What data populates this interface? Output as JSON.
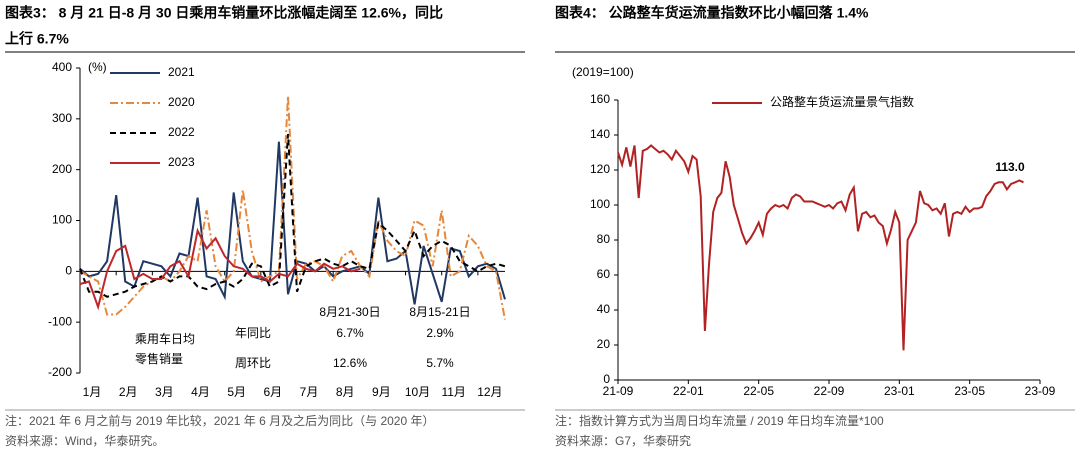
{
  "chart_data": [
    {
      "type": "line",
      "title": [
        "图表3： 8 月 21 日-8 月 30 日乘用车销量环比涨幅走阔至 12.6%，同比",
        "上行 6.7%"
      ],
      "y_unit": "(%)",
      "categories": [
        "1月",
        null,
        null,
        null,
        "2月",
        null,
        null,
        null,
        "3月",
        null,
        null,
        null,
        "4月",
        null,
        null,
        null,
        "5月",
        null,
        null,
        null,
        "6月",
        null,
        null,
        null,
        "7月",
        null,
        null,
        null,
        "8月",
        null,
        null,
        null,
        "9月",
        null,
        null,
        null,
        "10月",
        null,
        null,
        null,
        "11月",
        null,
        null,
        null,
        "12月",
        null,
        null,
        null
      ],
      "ylim": [
        -200,
        400
      ],
      "yticks": [
        -200,
        -100,
        0,
        100,
        200,
        300,
        400
      ],
      "legend": "top-left",
      "series": [
        {
          "name": "2021",
          "color": "#203864",
          "dash": "solid",
          "values": [
            5,
            -10,
            -5,
            20,
            150,
            -20,
            -30,
            20,
            15,
            10,
            -10,
            35,
            30,
            145,
            -10,
            -15,
            -50,
            155,
            20,
            -10,
            -15,
            -20,
            255,
            -45,
            20,
            15,
            0,
            10,
            -10,
            0,
            5,
            10,
            -5,
            145,
            20,
            25,
            40,
            -65,
            50,
            -5,
            -60,
            45,
            40,
            -10,
            10,
            15,
            5,
            -55
          ]
        },
        {
          "name": "2020",
          "color": "#e8873a",
          "dash": "dashdot",
          "values": [
            0,
            -10,
            -20,
            -85,
            -85,
            -70,
            -50,
            -30,
            -20,
            -10,
            -20,
            0,
            30,
            20,
            120,
            10,
            -20,
            0,
            160,
            40,
            -20,
            -10,
            0,
            345,
            -15,
            15,
            20,
            10,
            -20,
            30,
            40,
            10,
            -10,
            100,
            60,
            40,
            30,
            100,
            90,
            10,
            120,
            -10,
            0,
            70,
            50,
            10,
            0,
            -95
          ]
        },
        {
          "name": "2022",
          "color": "#000000",
          "dash": "dashed",
          "values": [
            5,
            -40,
            -40,
            -50,
            -45,
            -40,
            -30,
            -25,
            -20,
            -10,
            -20,
            -10,
            -10,
            -30,
            -35,
            -25,
            -20,
            -30,
            -15,
            15,
            10,
            -30,
            -20,
            270,
            -40,
            10,
            20,
            25,
            15,
            10,
            20,
            10,
            5,
            95,
            80,
            60,
            40,
            80,
            30,
            50,
            60,
            50,
            20,
            10,
            0,
            10,
            15,
            10
          ]
        },
        {
          "name": "2023",
          "color": "#c0272d",
          "dash": "solid",
          "values": [
            -25,
            -20,
            -70,
            0,
            40,
            50,
            -15,
            -5,
            -15,
            -15,
            10,
            20,
            -10,
            80,
            45,
            65,
            30,
            10,
            5,
            -10,
            -10,
            -20,
            -5,
            -10,
            15,
            5,
            0,
            15,
            5,
            10,
            0,
            5,
            null,
            null,
            null,
            null,
            null,
            null,
            null,
            null,
            null,
            null,
            null,
            null,
            null,
            null,
            null,
            null
          ]
        }
      ],
      "inset": {
        "row_header": [
          "乘用车日均",
          "零售销量"
        ],
        "metrics": [
          "年同比",
          "周环比"
        ],
        "periods": [
          "8月21-30日",
          "8月15-21日"
        ],
        "cells": [
          [
            "6.7%",
            "2.9%"
          ],
          [
            "12.6%",
            "5.7%"
          ]
        ]
      },
      "note": "注：2021 年 6 月之前与 2019 年比较，2021 年 6 月及之后为同比（与 2020 年）",
      "source": "资料来源：Wind，华泰研究。"
    },
    {
      "type": "line",
      "title": [
        "图表4： 公路整车货运流量指数环比小幅回落 1.4%"
      ],
      "y_unit": "(2019=100)",
      "categories": [
        "21-09",
        null,
        null,
        null,
        null,
        null,
        null,
        null,
        null,
        null,
        null,
        null,
        null,
        null,
        null,
        null,
        null,
        "22-01",
        null,
        null,
        null,
        null,
        null,
        null,
        null,
        null,
        null,
        null,
        null,
        null,
        null,
        null,
        null,
        null,
        "22-05",
        null,
        null,
        null,
        null,
        null,
        null,
        null,
        null,
        null,
        null,
        null,
        null,
        null,
        null,
        null,
        null,
        "22-09",
        null,
        null,
        null,
        null,
        null,
        null,
        null,
        null,
        null,
        null,
        null,
        null,
        null,
        null,
        null,
        null,
        "23-01",
        null,
        null,
        null,
        null,
        null,
        null,
        null,
        null,
        null,
        null,
        null,
        null,
        null,
        null,
        null,
        null,
        "23-05",
        null,
        null,
        null,
        null,
        null,
        null,
        null,
        null,
        null,
        null,
        null,
        null,
        null,
        null,
        null,
        null,
        "23-09"
      ],
      "ylim": [
        0,
        160
      ],
      "yticks": [
        0,
        20,
        40,
        60,
        80,
        100,
        120,
        140,
        160
      ],
      "legend": "top-left",
      "series": [
        {
          "name": "公路整车货运流量景气指数",
          "color": "#b22222",
          "dash": "solid",
          "values": [
            130,
            123,
            133,
            122,
            134,
            104,
            131,
            132,
            134,
            132,
            130,
            131,
            129,
            126,
            131,
            128,
            125,
            119,
            128,
            126,
            105,
            28,
            66,
            96,
            104,
            107,
            125,
            116,
            100,
            92,
            84,
            78,
            81,
            85,
            90,
            83,
            95,
            98,
            100,
            99,
            100,
            98,
            104,
            106,
            105,
            102,
            102,
            102,
            101,
            100,
            99,
            100,
            98,
            101,
            102,
            97,
            106,
            110,
            85,
            95,
            96,
            93,
            94,
            90,
            88,
            78,
            86,
            96,
            90,
            17,
            80,
            85,
            90,
            108,
            101,
            100,
            97,
            98,
            95,
            101,
            82,
            95,
            96,
            95,
            99,
            96,
            98,
            98,
            99,
            105,
            108,
            112,
            113,
            113,
            109,
            112,
            113,
            114,
            113,
            null,
            null,
            null,
            null
          ]
        }
      ],
      "end_label": "113.0",
      "note": "注：指数计算方式为当周日均车流量 / 2019 年日均车流量*100",
      "source": "资料来源：G7，华泰研究"
    }
  ]
}
